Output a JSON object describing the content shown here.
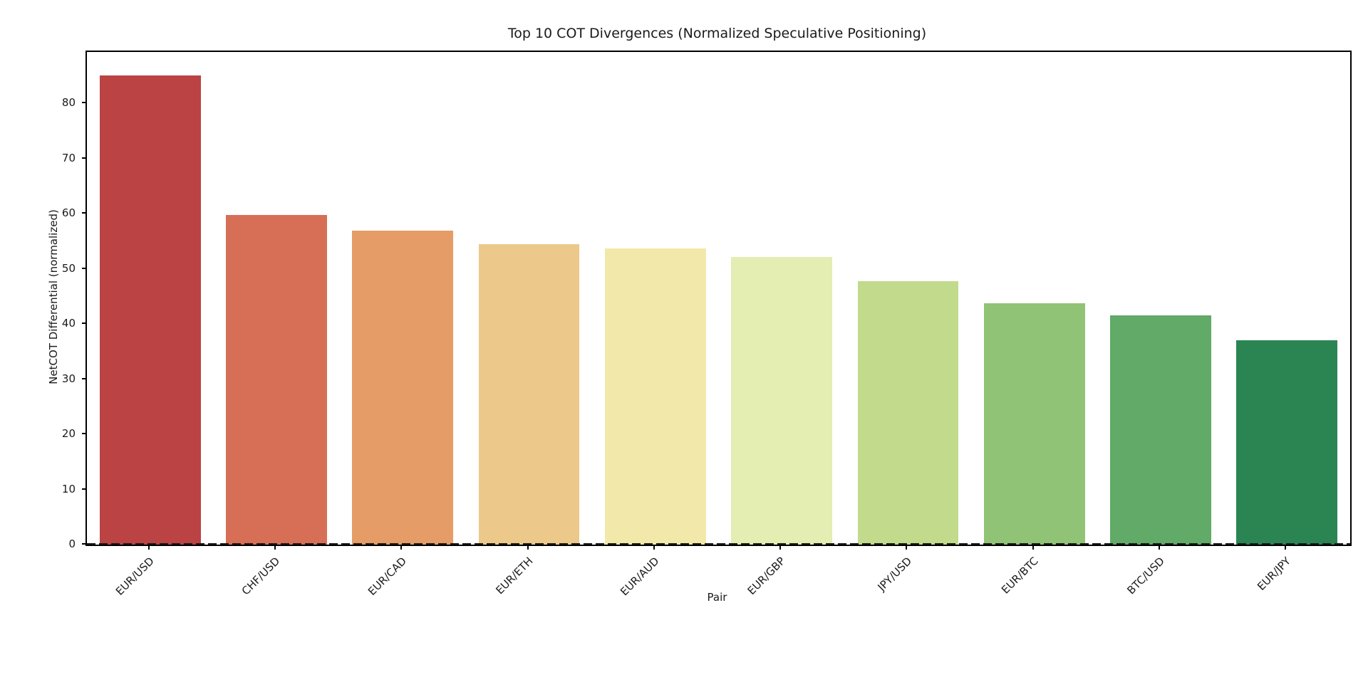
{
  "figure": {
    "background": "#ffffff",
    "text_color": "#1a1a1a"
  },
  "chart_data": {
    "type": "bar",
    "title": "Top 10 COT Divergences (Normalized Speculative Positioning)",
    "xlabel": "Pair",
    "ylabel": "NetCOT Differential (normalized)",
    "categories": [
      "EUR/USD",
      "CHF/USD",
      "EUR/CAD",
      "EUR/ETH",
      "EUR/AUD",
      "EUR/GBP",
      "JPY/USD",
      "EUR/BTC",
      "BTC/USD",
      "EUR/JPY"
    ],
    "values": [
      85.0,
      59.8,
      56.9,
      54.5,
      53.7,
      52.1,
      47.8,
      43.7,
      41.5,
      37.1
    ],
    "bar_colors": [
      "#bb4343",
      "#d76f56",
      "#e69c66",
      "#ecc98a",
      "#f2e8aa",
      "#e4edb2",
      "#c2da8c",
      "#91c377",
      "#61aa67",
      "#2b8553"
    ],
    "ylim": [
      0,
      89.3
    ],
    "yticks": [
      0,
      10,
      20,
      30,
      40,
      50,
      60,
      70,
      80
    ],
    "grid": false,
    "legend": false,
    "x_tick_rotation": 45,
    "bar_width_fraction": 0.8,
    "zero_line_style": "dashed"
  }
}
